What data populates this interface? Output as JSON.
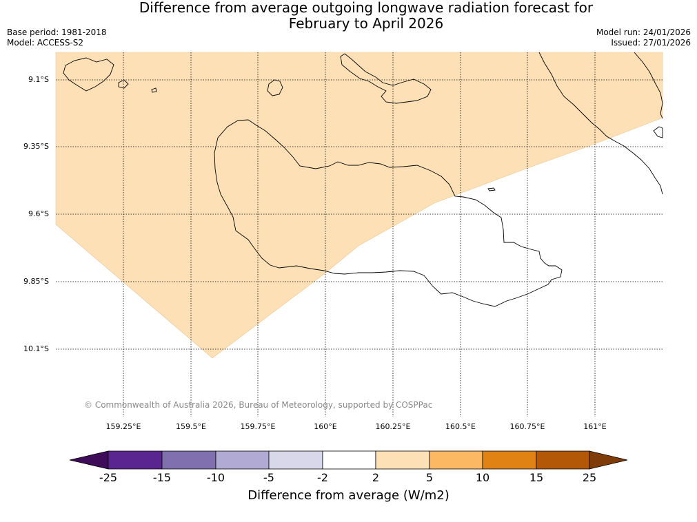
{
  "title_line1": "Difference from average outgoing longwave radiation forecast for",
  "title_line2": "February to April 2026",
  "base_period": "Base period: 1981-2018",
  "model": "Model: ACCESS-S2",
  "model_run": "Model run: 24/01/2026",
  "issued": "Issued: 27/01/2026",
  "lat_labels": [
    "9.1°S",
    "9.35°S",
    "9.6°S",
    "9.85°S",
    "10.1°S"
  ],
  "lon_labels": [
    "159.25°E",
    "159.5°E",
    "159.75°E",
    "160°E",
    "160.25°E",
    "160.5°E",
    "160.75°E",
    "161°E"
  ],
  "copyright": "© Commonwealth of Australia 2026, Bureau of Meteorology, supported by COSPPac",
  "colorbar": {
    "title": "Difference from average (W/m2)",
    "ticks": [
      "-25",
      "-15",
      "-10",
      "-5",
      "-2",
      "2",
      "5",
      "10",
      "15",
      "25"
    ],
    "colors": [
      "#3f0c5a",
      "#5a2590",
      "#8070b0",
      "#b1aad4",
      "#d8d8ea",
      "#ffffff",
      "#fde0b6",
      "#fdb863",
      "#e08214",
      "#b35806",
      "#7f3b08"
    ]
  },
  "shaded_region_color": "#fde0b6"
}
